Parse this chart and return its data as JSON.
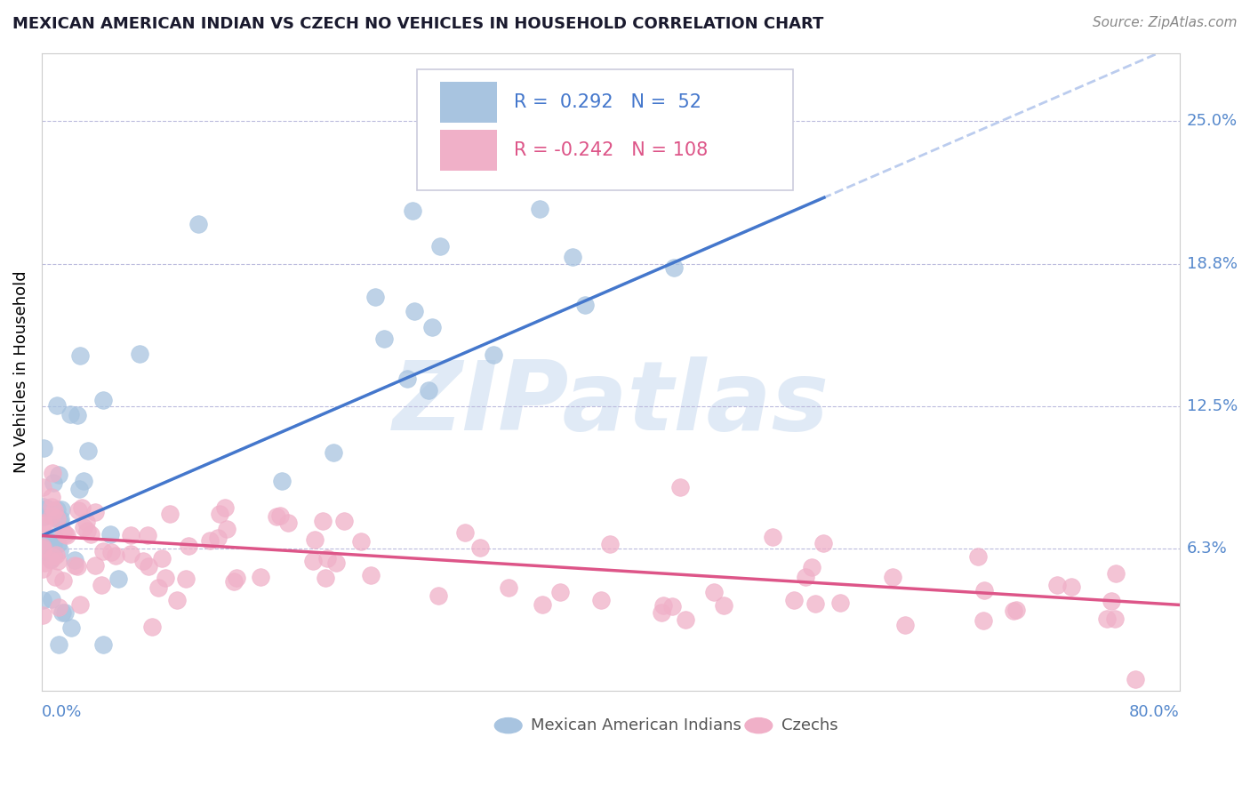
{
  "title": "MEXICAN AMERICAN INDIAN VS CZECH NO VEHICLES IN HOUSEHOLD CORRELATION CHART",
  "source": "Source: ZipAtlas.com",
  "ylabel": "No Vehicles in Household",
  "xlim": [
    0.0,
    0.8
  ],
  "ylim": [
    0.0,
    0.28
  ],
  "blue_color": "#a8c4e0",
  "pink_color": "#f0b0c8",
  "blue_line_color": "#4477cc",
  "pink_line_color": "#dd5588",
  "dashed_line_color": "#bbccee",
  "label_color": "#5588cc",
  "R_blue": 0.292,
  "N_blue": 52,
  "R_pink": -0.242,
  "N_pink": 108,
  "ytick_vals": [
    0.0625,
    0.125,
    0.1875,
    0.25
  ],
  "ytick_labels": [
    "6.3%",
    "12.5%",
    "18.8%",
    "25.0%"
  ],
  "blue_intercept": 0.068,
  "blue_slope": 0.27,
  "pink_intercept": 0.068,
  "pink_slope": -0.038
}
